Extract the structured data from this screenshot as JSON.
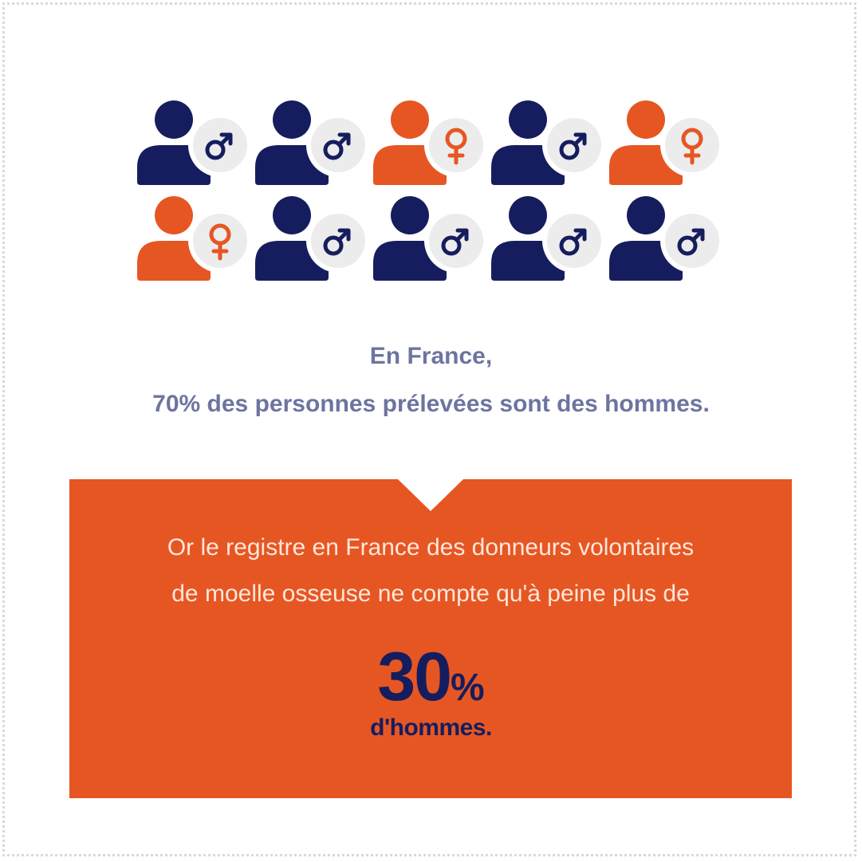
{
  "colors": {
    "male": "#161d5e",
    "female": "#e65623",
    "badge": "#ececec",
    "intro_text": "#6d74a0",
    "callout_bg": "#e65623",
    "callout_text": "#fde6da",
    "stat_text": "#161d5e"
  },
  "people": [
    {
      "gender": "male",
      "icon": "male-symbol-icon"
    },
    {
      "gender": "male",
      "icon": "male-symbol-icon"
    },
    {
      "gender": "female",
      "icon": "female-symbol-icon"
    },
    {
      "gender": "male",
      "icon": "male-symbol-icon"
    },
    {
      "gender": "female",
      "icon": "female-symbol-icon"
    },
    {
      "gender": "female",
      "icon": "female-symbol-icon"
    },
    {
      "gender": "male",
      "icon": "male-symbol-icon"
    },
    {
      "gender": "male",
      "icon": "male-symbol-icon"
    },
    {
      "gender": "male",
      "icon": "male-symbol-icon"
    },
    {
      "gender": "male",
      "icon": "male-symbol-icon"
    }
  ],
  "intro": {
    "line1": "En France,",
    "line2": "70% des personnes prélevées sont des hommes."
  },
  "callout": {
    "line1": "Or le registre en France des donneurs volontaires",
    "line2": "de moelle osseuse ne compte qu'à peine plus de",
    "stat_number": "30",
    "stat_unit": "%",
    "stat_caption": "d'hommes."
  }
}
